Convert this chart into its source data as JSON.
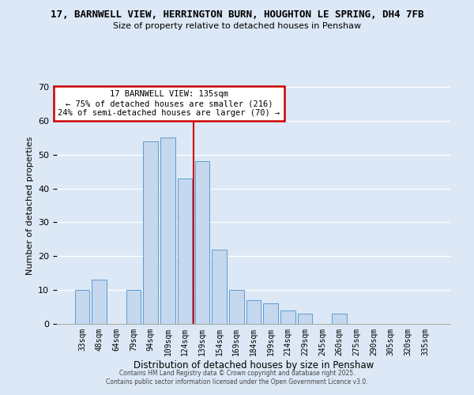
{
  "title_line1": "17, BARNWELL VIEW, HERRINGTON BURN, HOUGHTON LE SPRING, DH4 7FB",
  "title_line2": "Size of property relative to detached houses in Penshaw",
  "xlabel": "Distribution of detached houses by size in Penshaw",
  "ylabel": "Number of detached properties",
  "bar_labels": [
    "33sqm",
    "48sqm",
    "64sqm",
    "79sqm",
    "94sqm",
    "109sqm",
    "124sqm",
    "139sqm",
    "154sqm",
    "169sqm",
    "184sqm",
    "199sqm",
    "214sqm",
    "229sqm",
    "245sqm",
    "260sqm",
    "275sqm",
    "290sqm",
    "305sqm",
    "320sqm",
    "335sqm"
  ],
  "bar_values": [
    10,
    13,
    0,
    10,
    54,
    55,
    43,
    48,
    22,
    10,
    7,
    6,
    4,
    3,
    0,
    3,
    0,
    0,
    0,
    0,
    0
  ],
  "bar_color": "#c5d8ed",
  "bar_edge_color": "#5b9bd5",
  "vline_color": "#cc0000",
  "ylim": [
    0,
    70
  ],
  "yticks": [
    0,
    10,
    20,
    30,
    40,
    50,
    60,
    70
  ],
  "annotation_title": "17 BARNWELL VIEW: 135sqm",
  "annotation_line1": "← 75% of detached houses are smaller (216)",
  "annotation_line2": "24% of semi-detached houses are larger (70) →",
  "annotation_box_color": "#ffffff",
  "annotation_box_edge": "#cc0000",
  "footer_line1": "Contains HM Land Registry data © Crown copyright and database right 2025.",
  "footer_line2": "Contains public sector information licensed under the Open Government Licence v3.0.",
  "background_color": "#dce8f5",
  "plot_background": "#dce8f5"
}
